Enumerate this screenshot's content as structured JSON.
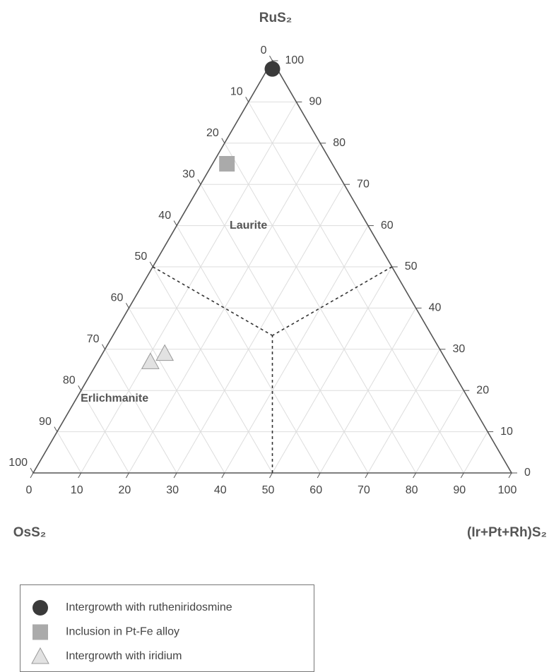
{
  "chart_data": {
    "type": "ternary",
    "axes": {
      "top": "RuS₂",
      "left": "OsS₂",
      "right": "(Ir+Pt+Rh)S₂"
    },
    "os_ticks": [
      0,
      10,
      20,
      30,
      40,
      50,
      60,
      70,
      80,
      90,
      100
    ],
    "ir_ticks": [
      0,
      10,
      20,
      30,
      40,
      50,
      60,
      70,
      80,
      90,
      100
    ],
    "ru_ticks": [
      0,
      10,
      20,
      30,
      40,
      50,
      60,
      70,
      80,
      90,
      100
    ],
    "grid": true,
    "fields": [
      {
        "label": "Laurite",
        "os": 25,
        "ir": 15,
        "ru": 60
      },
      {
        "label": "Erlichmanite",
        "os": 74,
        "ir": 8,
        "ru": 18
      }
    ],
    "field_boundaries": [
      {
        "os": [
          50,
          33.3
        ],
        "ir": [
          0,
          33.3
        ],
        "ru": [
          50,
          33.3
        ]
      },
      {
        "os": [
          0,
          33.3
        ],
        "ir": [
          50,
          33.3
        ],
        "ru": [
          50,
          33.3
        ]
      },
      {
        "os": [
          50,
          33.3
        ],
        "ir": [
          50,
          33.3
        ],
        "ru": [
          0,
          33.3
        ]
      }
    ],
    "series": [
      {
        "name": "Intergrowth with rutheniridosmine",
        "marker": "circle",
        "color": "#3a3a3a",
        "os": [
          1
        ],
        "ir": [
          1
        ],
        "ru": [
          98
        ]
      },
      {
        "name": "Inclusion in Pt-Fe alloy",
        "marker": "square",
        "color": "#aaaaaa",
        "os": [
          22
        ],
        "ir": [
          3
        ],
        "ru": [
          75
        ]
      },
      {
        "name": "Intergrowth with iridium",
        "marker": "triangle",
        "color": "#e2e2e2",
        "os": [
          62,
          58
        ],
        "ir": [
          11,
          13
        ],
        "ru": [
          27,
          29
        ]
      }
    ]
  }
}
